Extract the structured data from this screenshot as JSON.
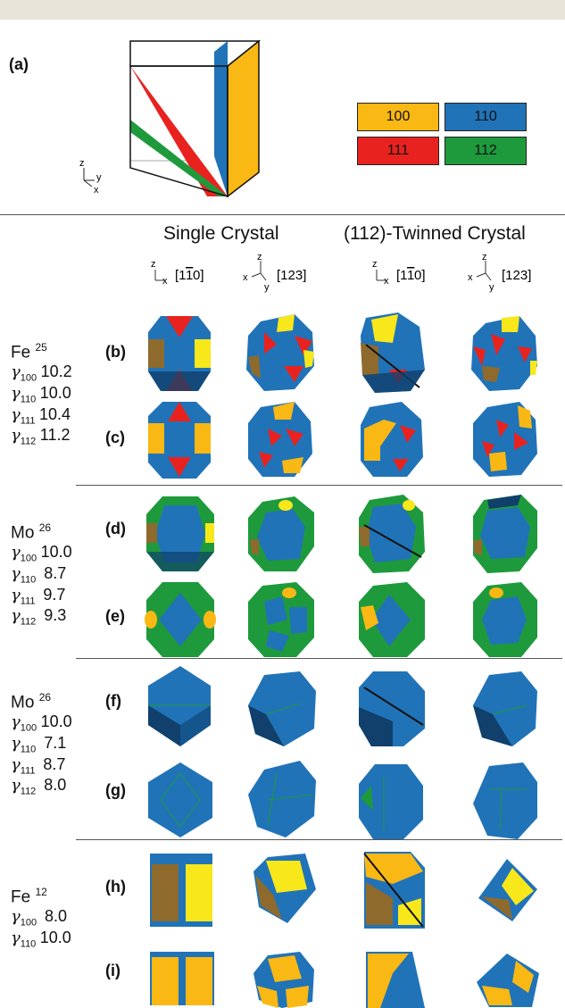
{
  "panel_labels": [
    "(a)",
    "(b)",
    "(c)",
    "(d)",
    "(e)",
    "(f)",
    "(g)",
    "(h)",
    "(i)"
  ],
  "legend": [
    {
      "label": "100",
      "color": "#f9b814"
    },
    {
      "label": "110",
      "color": "#2173b8"
    },
    {
      "label": "111",
      "color": "#e8231f"
    },
    {
      "label": "112",
      "color": "#1e9a3c"
    }
  ],
  "axes_small": {
    "z": "z",
    "y": "y",
    "x": "x"
  },
  "column_headers": {
    "single": "Single Crystal",
    "twinned": "(112)-Twinned Crystal"
  },
  "view_labels": {
    "a": "[1",
    "a_bar": "1",
    "a_end": "0]",
    "b": "[123]",
    "z": "z",
    "x": "x",
    "y": "y"
  },
  "materials": [
    {
      "element": "Fe",
      "ref": "25",
      "gammas": [
        [
          "100",
          "10.2"
        ],
        [
          "110",
          "10.0"
        ],
        [
          "111",
          "10.4"
        ],
        [
          "112",
          "11.2"
        ]
      ]
    },
    {
      "element": "Mo",
      "ref": "26",
      "gammas": [
        [
          "100",
          "10.0"
        ],
        [
          "110",
          "8.7"
        ],
        [
          "111",
          "9.7"
        ],
        [
          "112",
          "9.3"
        ]
      ]
    },
    {
      "element": "Mo",
      "ref": "26",
      "gammas": [
        [
          "100",
          "10.0"
        ],
        [
          "110",
          "7.1"
        ],
        [
          "111",
          "8.7"
        ],
        [
          "112",
          "8.0"
        ]
      ]
    },
    {
      "element": "Fe",
      "ref": "12",
      "gammas": [
        [
          "100",
          "8.0"
        ],
        [
          "110",
          "10.0"
        ]
      ]
    }
  ],
  "gamma_symbol": "γ",
  "colors": {
    "blue": "#2173b8",
    "dark_blue": "#10406b",
    "yellow": "#f9b814",
    "bright_yellow": "#f8e71b",
    "brown": "#8e6a2d",
    "red": "#e8231f",
    "green": "#1e9a3c"
  }
}
